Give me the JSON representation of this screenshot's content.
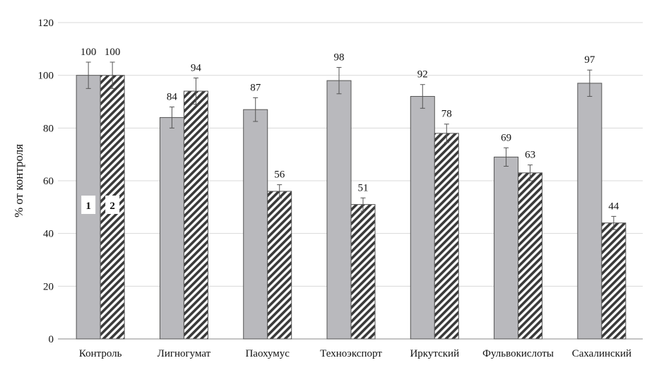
{
  "chart_data": {
    "type": "bar",
    "title": "",
    "xlabel": "",
    "ylabel": "% от контроля",
    "ylim": [
      0,
      120
    ],
    "yticks": [
      0,
      20,
      40,
      60,
      80,
      100,
      120
    ],
    "grid": true,
    "categories": [
      "Контроль",
      "Лигногумат",
      "Паохумус",
      "Техноэкспорт",
      "Иркутский",
      "Фульвокислоты",
      "Сахалинский"
    ],
    "series": [
      {
        "name": "1",
        "pattern": "solid",
        "color": "#b9b9bd",
        "values": [
          100,
          84,
          87,
          98,
          92,
          69,
          97
        ],
        "errors": [
          5,
          4,
          4.5,
          5,
          4.5,
          3.5,
          5
        ]
      },
      {
        "name": "2",
        "pattern": "diagonal-hatch",
        "color": "#3a3a3a",
        "values": [
          100,
          94,
          56,
          51,
          78,
          63,
          44
        ],
        "errors": [
          5,
          5,
          2.5,
          2.5,
          3.5,
          3,
          2.5
        ]
      }
    ],
    "legend_placement": "inside first category bars"
  }
}
